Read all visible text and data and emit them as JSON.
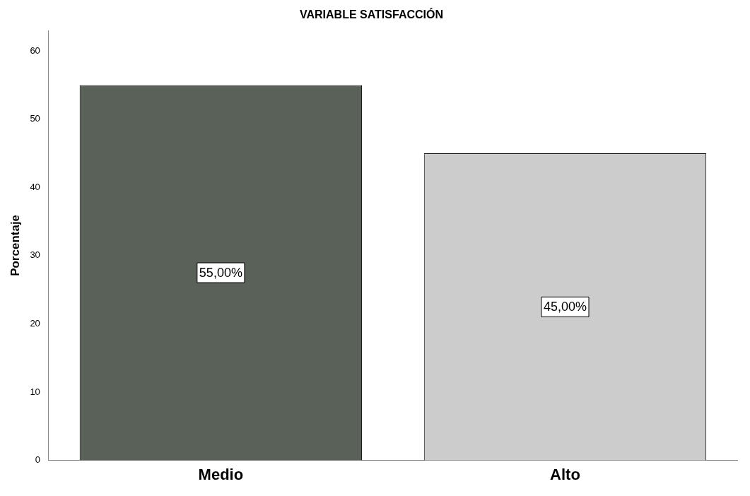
{
  "chart_data": {
    "type": "bar",
    "title": "VARIABLE SATISFACCIÓN",
    "ylabel": "Porcentaje",
    "categories": [
      "Medio",
      "Alto"
    ],
    "values": [
      55,
      45
    ],
    "colors": [
      "#5a6159",
      "#cccccc"
    ],
    "value_labels": [
      "55,00%",
      "45,00%"
    ],
    "ylim": [
      0,
      63
    ],
    "yticks": [
      0,
      10,
      20,
      30,
      40,
      50,
      60
    ],
    "grid": false,
    "legend": false
  }
}
